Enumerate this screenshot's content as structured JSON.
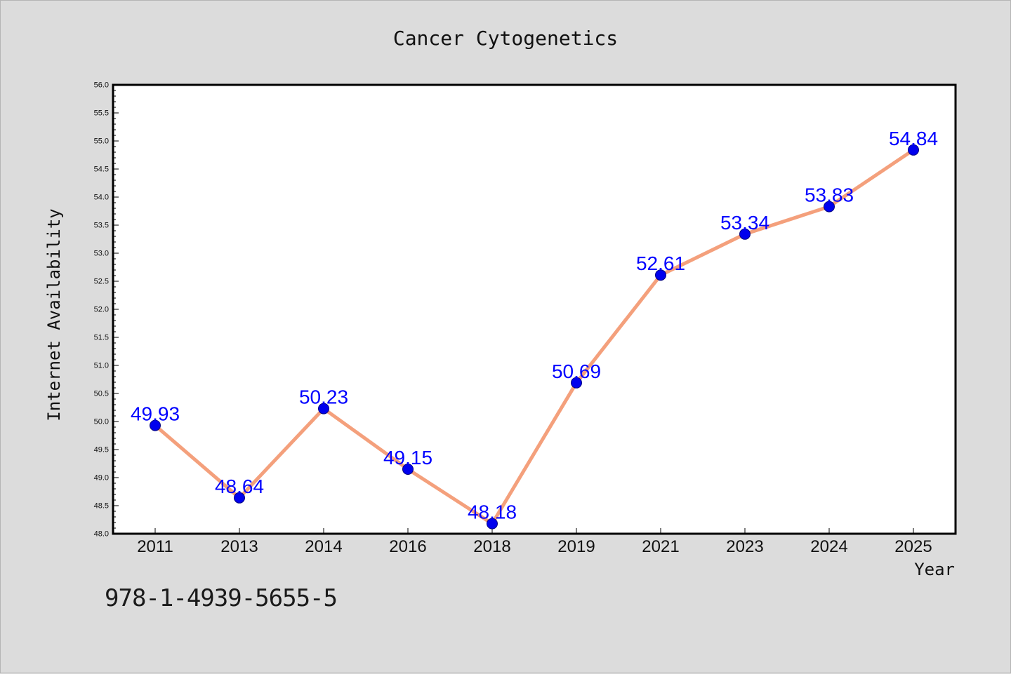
{
  "footer_text": "978-1-4939-5655-5",
  "chart_data": {
    "type": "line",
    "title": "Cancer Cytogenetics",
    "xlabel": "Year",
    "ylabel": "Internet Availability",
    "categories": [
      "2011",
      "2013",
      "2014",
      "2016",
      "2018",
      "2019",
      "2021",
      "2023",
      "2024",
      "2025"
    ],
    "series": [
      {
        "values": [
          49.93,
          48.64,
          50.23,
          49.15,
          48.18,
          50.69,
          52.61,
          53.34,
          53.83,
          54.84
        ],
        "data_labels": [
          "49.93",
          "48.64",
          "50.23",
          "49.15",
          "48.18",
          "50.69",
          "52.61",
          "53.34",
          "53.83",
          "54.84"
        ]
      }
    ],
    "ylim": [
      48.0,
      56.0
    ],
    "yticks": [
      "48.0",
      "48.5",
      "49.0",
      "49.5",
      "50.0",
      "50.5",
      "51.0",
      "51.5",
      "52.0",
      "52.5",
      "53.0",
      "53.5",
      "54.0",
      "54.5",
      "55.0",
      "55.5",
      "56.0"
    ],
    "grid": false,
    "legend": "none",
    "colors": {
      "line": "#f4a07c",
      "marker": "#0000ee",
      "marker_edge": "#000080",
      "data_label": "#0000ff",
      "background": "#dcdcdc",
      "plot_area": "#ffffff"
    }
  }
}
